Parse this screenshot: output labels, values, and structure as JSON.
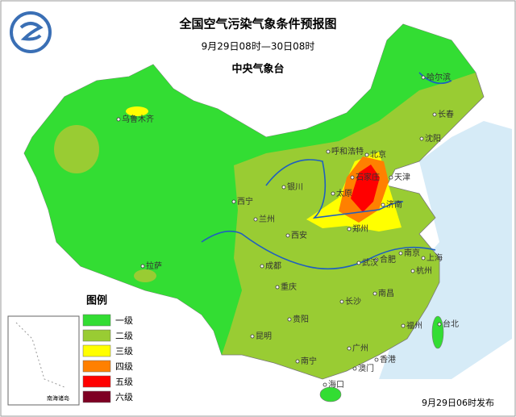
{
  "header": {
    "title": "全国空气污染气象条件预报图",
    "period": "9月29日08时—30日08时",
    "agency": "中央气象台"
  },
  "legend": {
    "title": "图例",
    "items": [
      {
        "label": "一级",
        "color": "#33dd33"
      },
      {
        "label": "二级",
        "color": "#99cc33"
      },
      {
        "label": "三级",
        "color": "#ffff00"
      },
      {
        "label": "四级",
        "color": "#ff8000"
      },
      {
        "label": "五级",
        "color": "#ff0000"
      },
      {
        "label": "六级",
        "color": "#7e0023"
      }
    ]
  },
  "map": {
    "cities": [
      "哈尔滨",
      "长春",
      "乌鲁木齐",
      "沈阳",
      "呼和浩特",
      "北京",
      "天津",
      "石家庄",
      "太原",
      "银川",
      "西宁",
      "兰州",
      "济南",
      "郑州",
      "西安",
      "南京",
      "合肥",
      "上海",
      "拉萨",
      "成都",
      "武汉",
      "杭州",
      "重庆",
      "南昌",
      "长沙",
      "福州",
      "贵阳",
      "昆明",
      "台北",
      "南宁",
      "广州",
      "香港",
      "澳门",
      "海口"
    ],
    "inset_label": "南海诸岛"
  },
  "footer": {
    "issued": "9月29日06时发布"
  }
}
